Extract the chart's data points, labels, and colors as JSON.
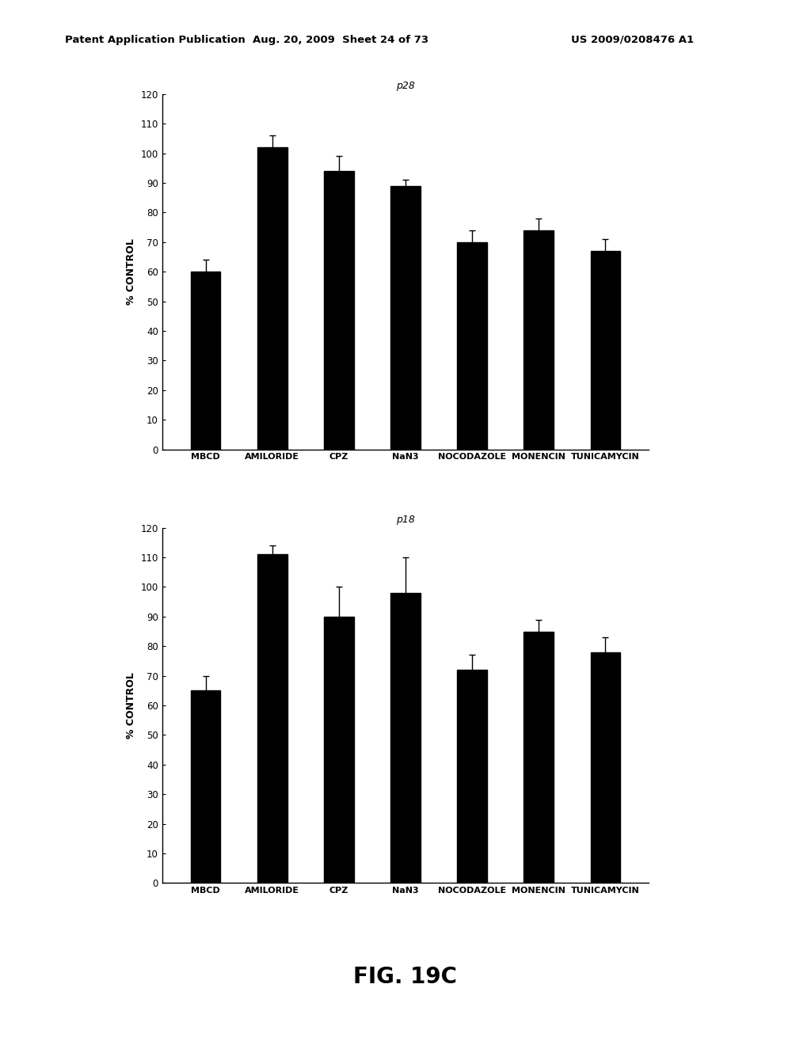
{
  "categories": [
    "MBCD",
    "AMILORIDE",
    "CPZ",
    "NaN3",
    "NOCODAZOLE",
    "MONENCIN",
    "TUNICAMYCIN"
  ],
  "p28_values": [
    60,
    102,
    94,
    89,
    70,
    74,
    67
  ],
  "p28_errors": [
    4,
    4,
    5,
    2,
    4,
    4,
    4
  ],
  "p18_values": [
    65,
    111,
    90,
    98,
    72,
    85,
    78
  ],
  "p18_errors": [
    5,
    3,
    10,
    12,
    5,
    4,
    5
  ],
  "bar_color": "#000000",
  "background_color": "#ffffff",
  "ylabel": "% CONTROL",
  "ylim": [
    0,
    120
  ],
  "yticks": [
    0,
    10,
    20,
    30,
    40,
    50,
    60,
    70,
    80,
    90,
    100,
    110,
    120
  ],
  "title_p28": "p28",
  "title_p18": "p18",
  "fig_label": "FIG. 19C",
  "header_left": "Patent Application Publication",
  "header_mid": "Aug. 20, 2009  Sheet 24 of 73",
  "header_right": "US 2009/0208476 A1"
}
